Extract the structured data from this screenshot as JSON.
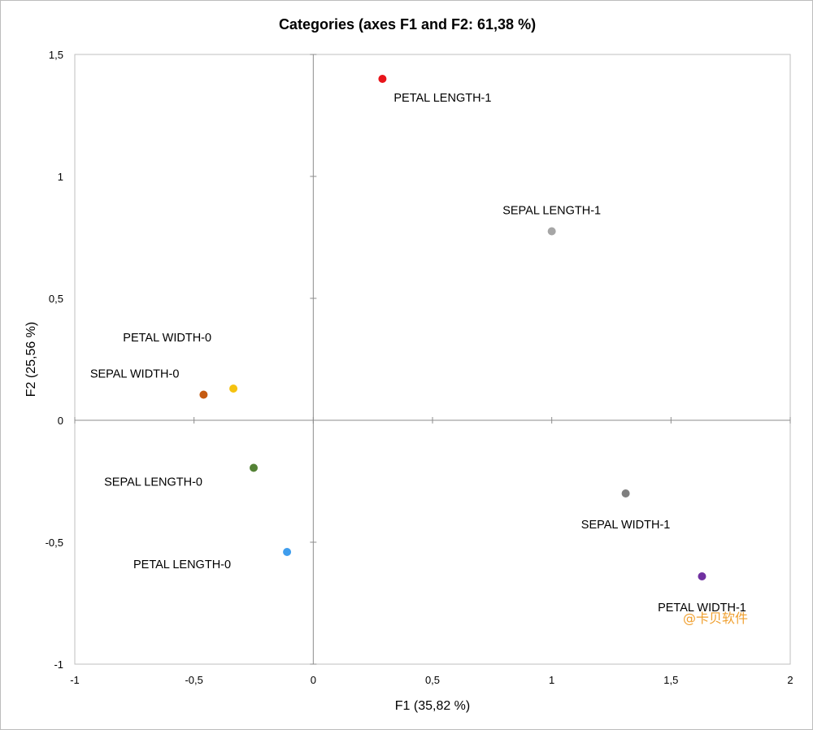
{
  "chart_data": {
    "type": "scatter",
    "title": "Categories (axes F1 and F2: 61,38 %)",
    "xlabel": "F1 (35,82 %)",
    "ylabel": "F2 (25,56 %)",
    "xlim": [
      -1,
      2
    ],
    "ylim": [
      -1,
      1.5
    ],
    "xticks": [
      -1,
      -0.5,
      0,
      0.5,
      1,
      1.5,
      2
    ],
    "xtick_labels": [
      "-1",
      "-0,5",
      "0",
      "0,5",
      "1",
      "1,5",
      "2"
    ],
    "yticks": [
      -1,
      -0.5,
      0,
      0.5,
      1,
      1.5
    ],
    "ytick_labels": [
      "-1",
      "-0,5",
      "0",
      "0,5",
      "1",
      "1,5"
    ],
    "grid": false,
    "points": [
      {
        "label": "PETAL LENGTH-1",
        "x": 0.29,
        "y": 1.4,
        "color": "#e8141a",
        "label_pos": "below-right"
      },
      {
        "label": "SEPAL LENGTH-1",
        "x": 1.0,
        "y": 0.775,
        "color": "#a6a6a6",
        "label_pos": "above"
      },
      {
        "label": "PETAL WIDTH-0",
        "x": -0.335,
        "y": 0.13,
        "color": "#f5c20f",
        "label_pos": "above-left"
      },
      {
        "label": "SEPAL WIDTH-0",
        "x": -0.46,
        "y": 0.105,
        "color": "#c55a11",
        "label_pos": "above-left"
      },
      {
        "label": "SEPAL LENGTH-0",
        "x": -0.25,
        "y": -0.195,
        "color": "#548235",
        "label_pos": "below-left"
      },
      {
        "label": "PETAL LENGTH-0",
        "x": -0.11,
        "y": -0.54,
        "color": "#3f9ded",
        "label_pos": "below-left"
      },
      {
        "label": "SEPAL WIDTH-1",
        "x": 1.31,
        "y": -0.3,
        "color": "#7f7f7f",
        "label_pos": "below"
      },
      {
        "label": "PETAL WIDTH-1",
        "x": 1.63,
        "y": -0.64,
        "color": "#7030a0",
        "label_pos": "below"
      }
    ]
  },
  "watermark": "@卡贝软件"
}
